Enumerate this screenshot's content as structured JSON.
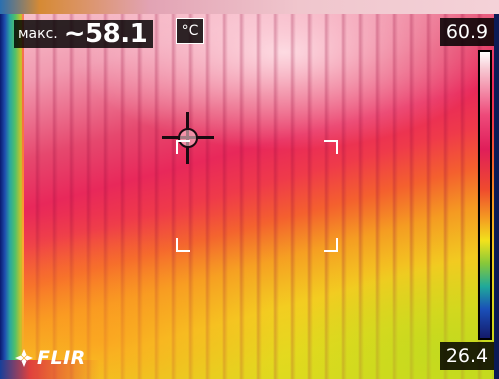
{
  "readout": {
    "max_label": "макс.",
    "max_value": "~58.1",
    "unit": "°C"
  },
  "scale": {
    "max": "60.9",
    "min": "26.4",
    "palette": [
      "#ffffff",
      "#ee4a7a",
      "#e01e5a",
      "#f49a22",
      "#f2e21c",
      "#1fa99a",
      "#141a6a"
    ]
  },
  "overlays": {
    "spot_meter": "crosshair-icon",
    "measure_box": "measurement-box"
  },
  "brand": {
    "logo_text": "FLIR"
  }
}
